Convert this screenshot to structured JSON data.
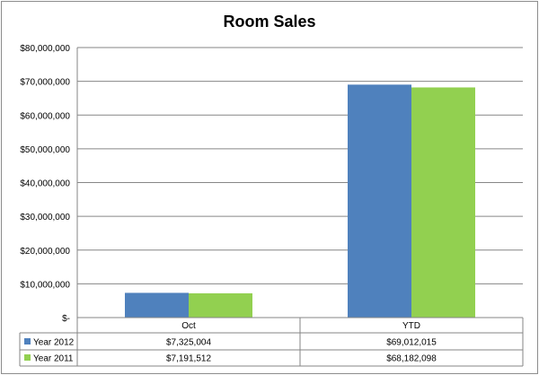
{
  "chart_data": {
    "type": "bar",
    "title": "Room Sales",
    "categories": [
      "Oct",
      "YTD"
    ],
    "series": [
      {
        "name": "Year 2012",
        "values": [
          7325004,
          69012015
        ],
        "color": "#4f81bd",
        "labels": [
          "$7,325,004",
          "$69,012,015"
        ]
      },
      {
        "name": "Year 2011",
        "values": [
          7191512,
          68182098
        ],
        "color": "#92d050",
        "labels": [
          "$7,191,512",
          "$68,182,098"
        ]
      }
    ],
    "ylim": [
      0,
      80000000
    ],
    "yticks": [
      0,
      10000000,
      20000000,
      30000000,
      40000000,
      50000000,
      60000000,
      70000000,
      80000000
    ],
    "ytick_labels": [
      "$-",
      "$10,000,000",
      "$20,000,000",
      "$30,000,000",
      "$40,000,000",
      "$50,000,000",
      "$60,000,000",
      "$70,000,000",
      "$80,000,000"
    ],
    "grid": true,
    "legend": "data-table"
  }
}
